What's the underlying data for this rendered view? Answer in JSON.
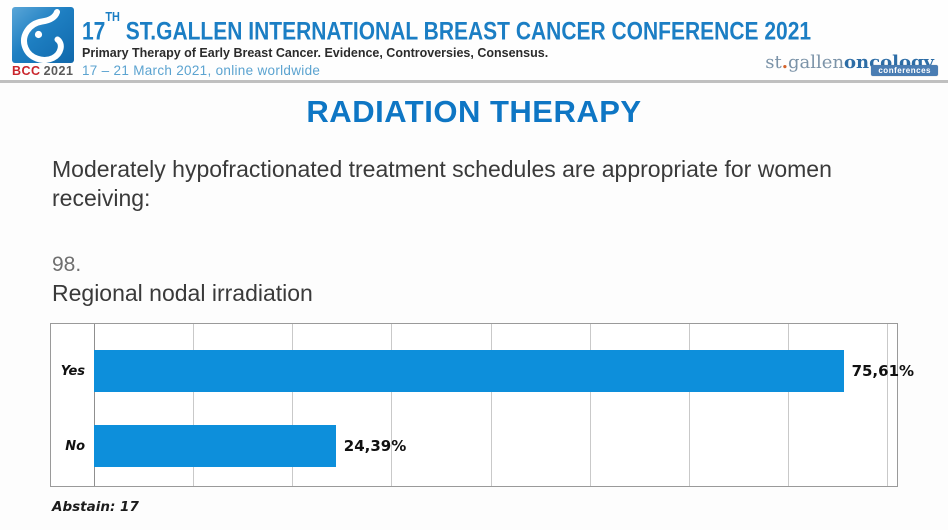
{
  "header": {
    "logo": {
      "label_bcc": "BCC",
      "label_year": "2021"
    },
    "title": {
      "num": "17",
      "sup": "TH",
      "rest": " ST.GALLEN INTERNATIONAL BREAST CANCER CONFERENCE 2021"
    },
    "subtitle": "Primary Therapy of Early Breast Cancer. Evidence, Controversies, Consensus.",
    "date_line": "17 – 21 March 2021, online worldwide",
    "brand": {
      "part1": "st",
      "dot": ".",
      "part2": "gallen",
      "part3": "oncology",
      "badge": "conferences"
    }
  },
  "main": {
    "section_title": "RADIATION THERAPY",
    "question_intro": "Moderately hypofractionated treatment schedules are appropriate for women receiving:",
    "question_number": "98.",
    "question_item": "Regional nodal irradiation",
    "abstain_note": "Abstain: 17"
  },
  "chart_data": {
    "type": "bar",
    "orientation": "horizontal",
    "title": "",
    "categories": [
      "Yes",
      "No"
    ],
    "values": [
      75.61,
      24.39
    ],
    "value_labels": [
      "75,61%",
      "24,39%"
    ],
    "xlabel": "",
    "ylabel": "",
    "xlim": [
      0,
      81
    ],
    "gridline_interval": 10,
    "grid": true,
    "legend": false,
    "bar_color": "#0d8fdb"
  },
  "colors": {
    "accent_blue": "#0e76c4",
    "bar_blue": "#0d8fdb",
    "header_blue": "#1b7ec4",
    "light_blue": "#5ba3d0",
    "bcc_red": "#c9252c",
    "brand_gray_blue": "#7b93a8",
    "brand_dark_blue": "#2d6da6",
    "badge_blue": "#4a7db3"
  }
}
